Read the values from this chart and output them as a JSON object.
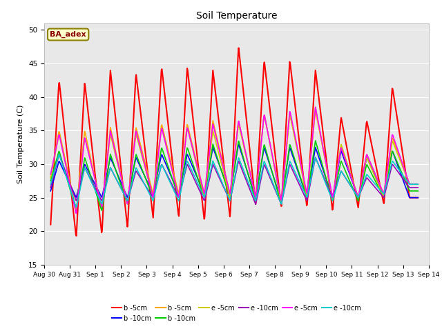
{
  "title": "Soil Temperature",
  "ylabel": "Soil Temperature (C)",
  "xlabel": "",
  "ylim": [
    15,
    51
  ],
  "yticks": [
    15,
    20,
    25,
    30,
    35,
    40,
    45,
    50
  ],
  "fig_bg": "#ffffff",
  "plot_bg": "#e8e8e8",
  "grid_color": "white",
  "annotation_text": "BA_adex",
  "annotation_bg": "#ffffcc",
  "annotation_border": "#8B8000",
  "annotation_text_color": "#8B0000",
  "date_labels": [
    "Aug 30",
    "Aug 31",
    "Sep 1",
    "Sep 2",
    "Sep 3",
    "Sep 4",
    "Sep 5",
    "Sep 6",
    "Sep 7",
    "Sep 8",
    "Sep 9",
    "Sep 10",
    "Sep 11",
    "Sep 12",
    "Sep 13",
    "Sep 14"
  ],
  "series": [
    {
      "label": "b -5cm",
      "color": "#ff0000",
      "lw": 1.5
    },
    {
      "label": "b -10cm",
      "color": "#0000ff",
      "lw": 1.2
    },
    {
      "label": "b -5cm",
      "color": "#ffa500",
      "lw": 1.2
    },
    {
      "label": "b -10cm",
      "color": "#00cc00",
      "lw": 1.2
    },
    {
      "label": "e -5cm",
      "color": "#cccc00",
      "lw": 1.2
    },
    {
      "label": "e -10cm",
      "color": "#9900bb",
      "lw": 1.2
    },
    {
      "label": "e -5cm",
      "color": "#ff00ff",
      "lw": 1.2
    },
    {
      "label": "e -10cm",
      "color": "#00cccc",
      "lw": 1.2
    }
  ],
  "peaks_b5cm": [
    21.0,
    42.5,
    19.0,
    42.2,
    19.5,
    44.0,
    20.5,
    43.5,
    22.0,
    44.5,
    22.0,
    44.5,
    21.5,
    44.0,
    22.0,
    47.5,
    24.0,
    45.5,
    23.5,
    45.5,
    23.5,
    44.0,
    23.0,
    37.0,
    23.5,
    36.5,
    24.0,
    41.5,
    25.0,
    25.0
  ],
  "peaks_b10cm": [
    26.0,
    30.5,
    25.0,
    30.0,
    25.0,
    31.0,
    25.0,
    31.0,
    25.5,
    31.5,
    25.5,
    31.5,
    25.5,
    32.5,
    25.5,
    33.0,
    25.0,
    32.5,
    24.5,
    32.5,
    25.0,
    32.5,
    25.0,
    32.0,
    25.0,
    31.0,
    25.5,
    32.0,
    25.0,
    25.0
  ],
  "peaks_b5cm2": [
    28.0,
    35.0,
    23.0,
    35.0,
    23.0,
    35.5,
    24.0,
    35.5,
    25.5,
    36.0,
    25.5,
    36.0,
    25.5,
    36.5,
    25.5,
    36.5,
    25.0,
    37.5,
    24.5,
    37.5,
    25.5,
    38.0,
    25.0,
    32.5,
    25.0,
    31.5,
    25.5,
    34.0,
    27.0,
    27.0
  ],
  "peaks_b10cm2": [
    27.5,
    32.0,
    23.0,
    31.0,
    23.0,
    31.5,
    24.0,
    31.5,
    25.0,
    32.5,
    25.0,
    32.5,
    25.0,
    33.0,
    25.0,
    33.5,
    24.5,
    33.0,
    24.0,
    33.0,
    25.0,
    33.5,
    24.5,
    30.5,
    24.5,
    30.0,
    25.0,
    32.0,
    26.0,
    26.0
  ],
  "peaks_e5cm": [
    28.0,
    34.5,
    23.0,
    34.0,
    23.5,
    34.5,
    24.0,
    34.5,
    25.0,
    35.5,
    25.0,
    35.5,
    25.0,
    35.0,
    25.0,
    36.0,
    25.0,
    37.5,
    24.0,
    37.5,
    25.0,
    38.5,
    24.5,
    33.0,
    25.0,
    31.0,
    25.0,
    33.5,
    27.0,
    27.0
  ],
  "peaks_e10cm": [
    26.5,
    31.5,
    24.5,
    29.5,
    24.5,
    29.5,
    24.5,
    29.0,
    25.0,
    30.0,
    25.0,
    30.0,
    24.5,
    30.0,
    24.5,
    30.5,
    24.0,
    30.0,
    24.0,
    30.0,
    24.5,
    31.0,
    25.0,
    29.0,
    25.0,
    28.0,
    25.0,
    30.0,
    26.5,
    26.5
  ],
  "peaks_e5cm2": [
    28.5,
    34.5,
    22.5,
    34.0,
    23.5,
    35.0,
    24.0,
    35.0,
    25.0,
    35.5,
    25.0,
    35.5,
    25.5,
    36.0,
    25.5,
    36.5,
    25.0,
    37.5,
    24.5,
    38.0,
    25.5,
    38.5,
    25.0,
    32.5,
    25.0,
    31.5,
    25.5,
    34.5,
    27.0,
    27.0
  ],
  "peaks_e10cm2": [
    27.0,
    31.5,
    23.5,
    29.5,
    24.0,
    29.5,
    24.5,
    29.5,
    24.5,
    30.0,
    24.5,
    30.5,
    25.0,
    30.5,
    24.5,
    31.0,
    24.5,
    30.5,
    24.0,
    30.5,
    25.0,
    31.0,
    24.5,
    29.0,
    25.0,
    28.5,
    25.5,
    30.5,
    27.0,
    27.0
  ]
}
